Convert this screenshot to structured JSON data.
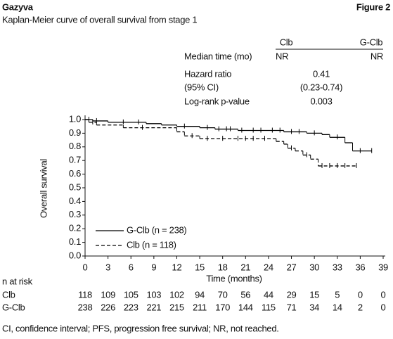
{
  "header": {
    "left": "Gazyva",
    "right": "Figure 2"
  },
  "stats": {
    "columns": [
      "Clb",
      "G-Clb"
    ],
    "rows": [
      {
        "label": "Median time (mo)",
        "values": [
          "NR",
          "NR"
        ]
      },
      {
        "label": "Hazard ratio",
        "value": "0.41"
      },
      {
        "label": "(95% CI)",
        "value": "(0.23-0.74)"
      },
      {
        "label": "Log-rank p-value",
        "value": "0.003"
      }
    ]
  },
  "chart_data": {
    "type": "step",
    "title": "Kaplan-Meier curve of overall survival from stage 1",
    "x_label": "Time (months)",
    "y_label": "Overall survival",
    "xlim": [
      0,
      39
    ],
    "xticks": [
      0,
      3,
      6,
      9,
      12,
      15,
      18,
      21,
      24,
      27,
      30,
      33,
      36,
      39
    ],
    "ylim": [
      0,
      1
    ],
    "yticks": [
      {
        "value": 0,
        "label": "0.0"
      },
      0.1,
      0.2,
      0.3,
      0.4,
      0.5,
      0.6,
      0.7,
      0.8,
      0.9,
      {
        "value": 1,
        "label": "1.0"
      }
    ],
    "legend": "lower left",
    "series": [
      {
        "name": "G-Clb (n = 238)",
        "color": "#000000",
        "dash": false,
        "x": [
          0,
          1,
          3,
          8,
          10,
          12,
          15,
          17,
          20,
          26,
          29,
          31,
          32,
          34,
          35,
          37.5
        ],
        "values": [
          1.0,
          0.99,
          0.98,
          0.97,
          0.96,
          0.95,
          0.94,
          0.93,
          0.92,
          0.91,
          0.9,
          0.89,
          0.87,
          0.83,
          0.77,
          0.77
        ],
        "censored": [
          0.5,
          1.5,
          5,
          7,
          13,
          16,
          17.5,
          18.5,
          19,
          20.5,
          22,
          23,
          24.5,
          25.5,
          27,
          28,
          30,
          33,
          36,
          37.5
        ]
      },
      {
        "name": "Clb (n = 118)",
        "color": "#000000",
        "dash": true,
        "x": [
          0,
          0.5,
          1.5,
          5,
          12,
          13,
          15,
          25,
          26,
          26.5,
          27.5,
          28.5,
          29.5,
          30.5,
          35.5
        ],
        "values": [
          1.0,
          0.98,
          0.96,
          0.94,
          0.91,
          0.88,
          0.86,
          0.84,
          0.82,
          0.79,
          0.77,
          0.74,
          0.71,
          0.66,
          0.66
        ],
        "censored": [
          1,
          7.5,
          14,
          16,
          18,
          20,
          21,
          22,
          23.5,
          27,
          29,
          31,
          32,
          33,
          34,
          35.5
        ]
      }
    ],
    "risk_table": {
      "title": "n at risk",
      "rows": [
        {
          "label": "Clb",
          "values": [
            118,
            109,
            105,
            103,
            102,
            94,
            70,
            56,
            44,
            29,
            15,
            5,
            0,
            0
          ]
        },
        {
          "label": "G-Clb",
          "values": [
            238,
            226,
            223,
            221,
            215,
            211,
            170,
            144,
            115,
            71,
            34,
            14,
            2,
            0
          ]
        }
      ]
    }
  },
  "footnote": "CI, confidence interval; PFS, progression free survival; NR, not reached."
}
